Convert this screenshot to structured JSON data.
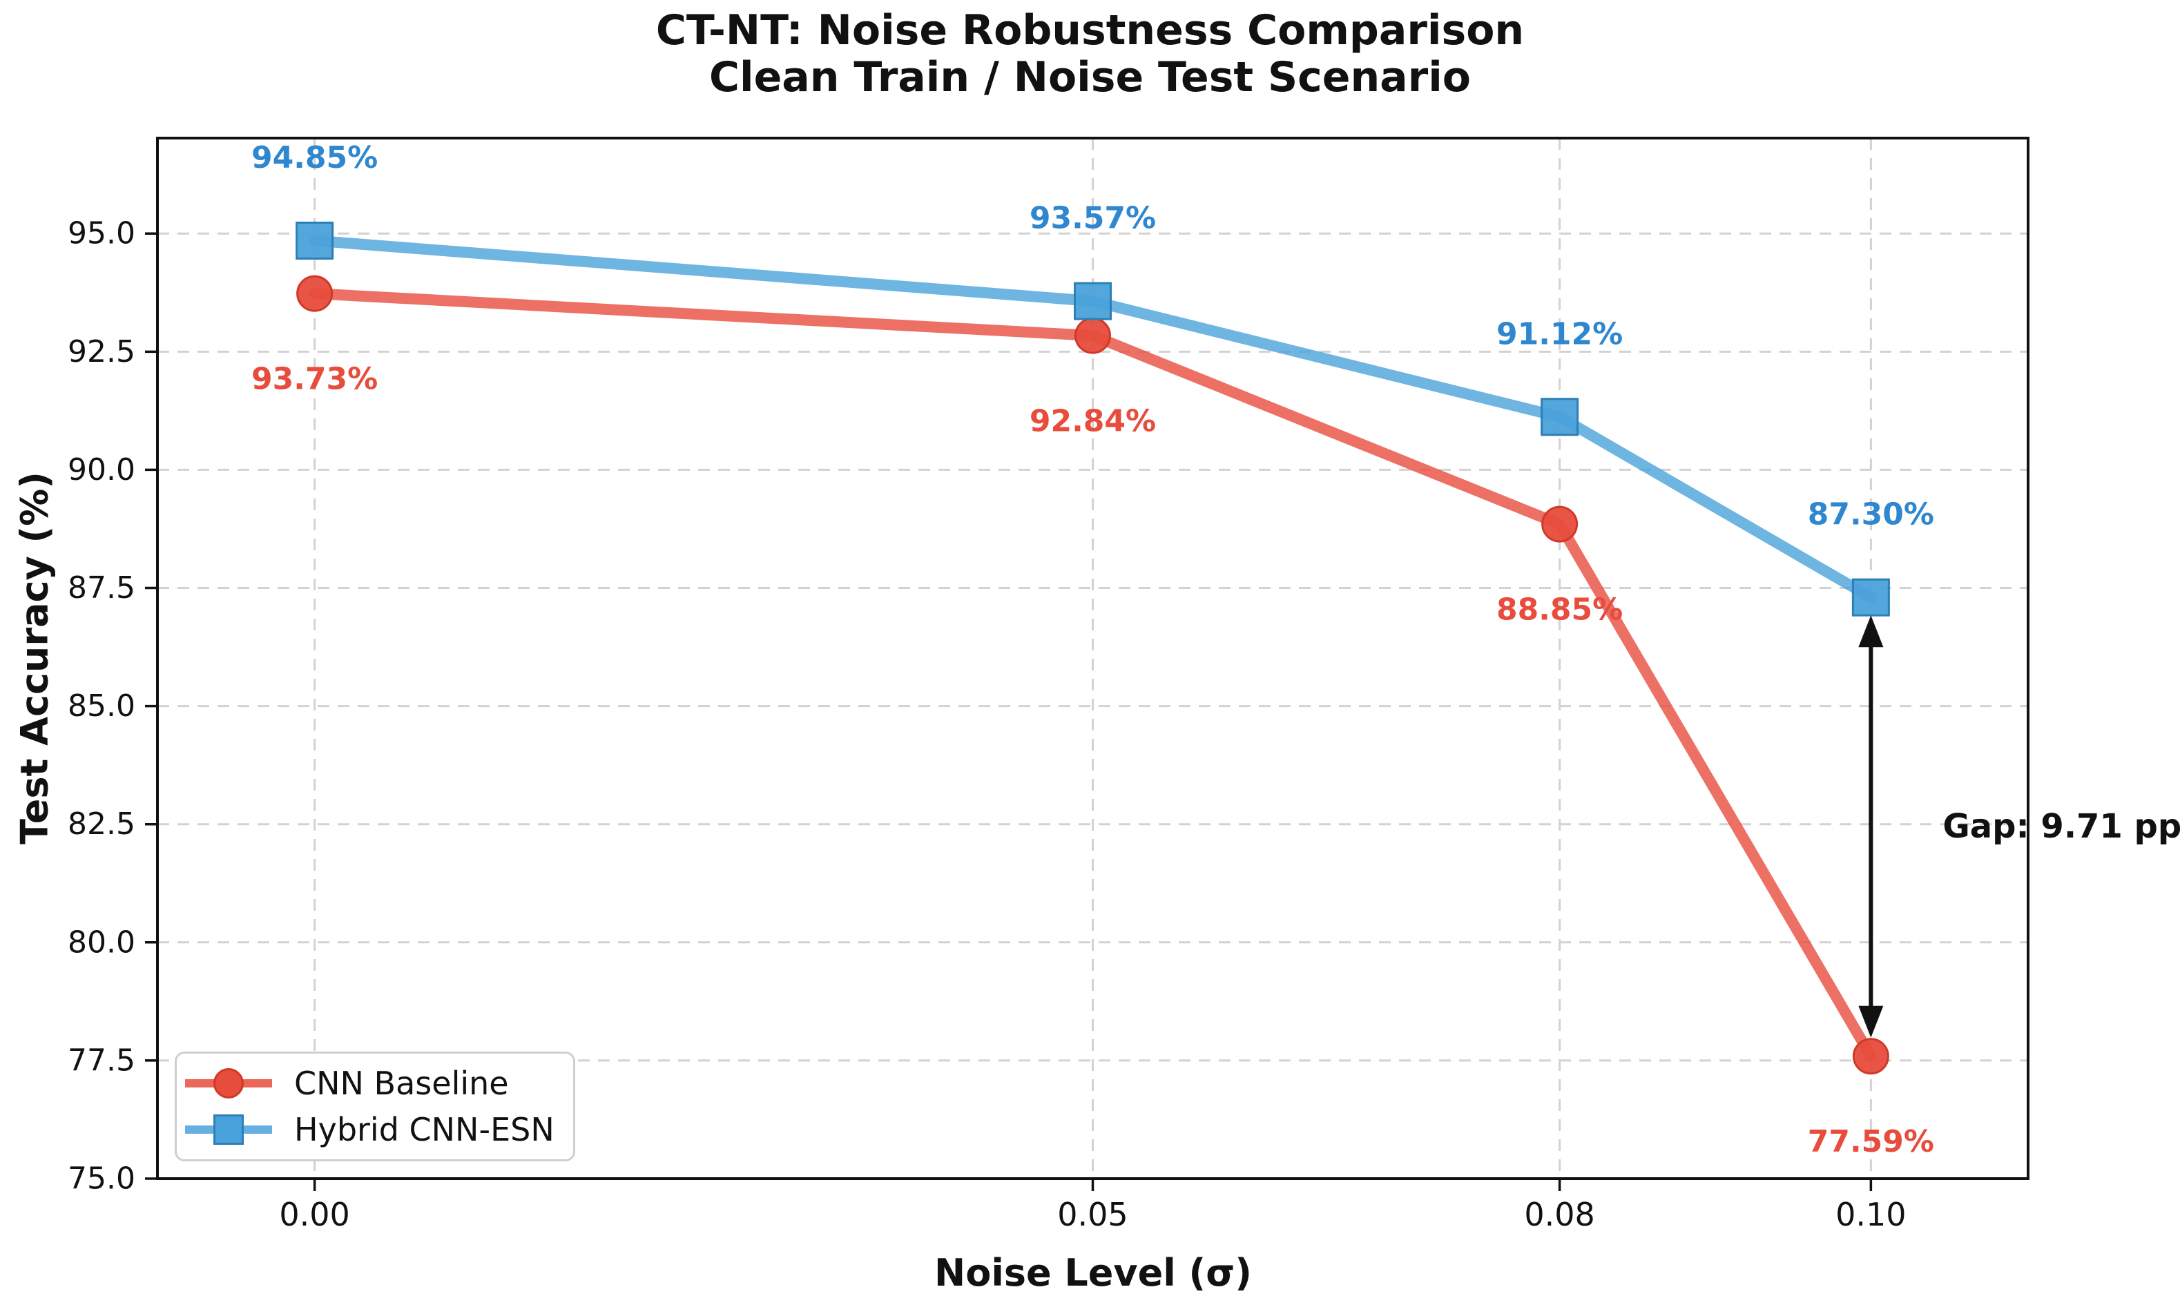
{
  "figure": {
    "title_line1": "CT-NT: Noise Robustness Comparison",
    "title_line2": "Clean Train / Noise Test Scenario",
    "background": "#ffffff"
  },
  "chart_data": {
    "type": "line",
    "title": "CT-NT: Noise Robustness Comparison",
    "subtitle": "Clean Train / Noise Test Scenario",
    "xlabel": "Noise Level (σ)",
    "ylabel": "Test Accuracy (%)",
    "x": [
      0.0,
      0.05,
      0.08,
      0.1
    ],
    "x_tick_labels": [
      "0.00",
      "0.05",
      "0.08",
      "0.10"
    ],
    "y_ticks": [
      75.0,
      77.5,
      80.0,
      82.5,
      85.0,
      87.5,
      90.0,
      92.5,
      95.0
    ],
    "y_tick_labels": [
      "75.0",
      "77.5",
      "80.0",
      "82.5",
      "85.0",
      "87.5",
      "90.0",
      "92.5",
      "95.0"
    ],
    "xlim": [
      -0.0101,
      0.1101
    ],
    "ylim": [
      75.0,
      97.02
    ],
    "grid": true,
    "grid_color": "#d2d2d2",
    "spine_color": "#111111",
    "legend_position": "lower left",
    "series": [
      {
        "name": "CNN Baseline",
        "marker": "circle",
        "color": "#e74c3c",
        "edge_color": "#cf3a28",
        "label_color": "#e74c3c",
        "values": [
          93.73,
          92.84,
          88.85,
          77.59
        ],
        "point_labels": [
          "93.73%",
          "92.84%",
          "88.85%",
          "77.59%"
        ],
        "label_side": "below"
      },
      {
        "name": "Hybrid CNN-ESN",
        "marker": "square",
        "color": "#4aa2db",
        "edge_color": "#2d7fb8",
        "label_color": "#2e87cf",
        "values": [
          94.85,
          93.57,
          91.12,
          87.3
        ],
        "point_labels": [
          "94.85%",
          "93.57%",
          "91.12%",
          "87.30%"
        ],
        "label_side": "above"
      }
    ],
    "annotation": {
      "text": "Gap: 9.71 pp",
      "x": 0.1,
      "y_from": 77.59,
      "y_to": 87.3,
      "color": "#111111"
    }
  }
}
